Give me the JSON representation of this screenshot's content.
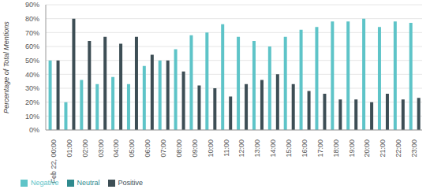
{
  "chart_data": {
    "type": "bar",
    "y_label": "Percentage of Total Mentions",
    "categories": [
      "Feb 22, 00:00",
      "01:00",
      "02:00",
      "03:00",
      "04:00",
      "05:00",
      "06:00",
      "07:00",
      "08:00",
      "09:00",
      "10:00",
      "11:00",
      "12:00",
      "13:00",
      "14:00",
      "15:00",
      "16:00",
      "17:00",
      "18:00",
      "19:00",
      "20:00",
      "21:00",
      "22:00",
      "23:00"
    ],
    "series": [
      {
        "name": "Negative",
        "color": "#5ec4c8",
        "values": [
          50,
          20,
          36,
          33,
          38,
          33,
          46,
          50,
          58,
          68,
          70,
          76,
          67,
          64,
          60,
          67,
          72,
          74,
          78,
          78,
          80,
          74,
          78,
          77
        ]
      },
      {
        "name": "Neutral",
        "color": "#2f8a8e",
        "values": [
          0,
          0,
          0,
          0,
          0,
          0,
          0,
          0,
          0,
          0,
          0,
          0,
          0,
          0,
          0,
          0,
          0,
          0,
          0,
          0,
          0,
          0,
          0,
          0
        ]
      },
      {
        "name": "Positive",
        "color": "#3d4e55",
        "values": [
          50,
          80,
          64,
          67,
          62,
          67,
          54,
          50,
          42,
          32,
          30,
          24,
          33,
          36,
          40,
          33,
          28,
          26,
          22,
          22,
          20,
          26,
          22,
          23
        ]
      }
    ],
    "ylim": [
      0,
      90
    ],
    "yticks": [
      {
        "value": 0,
        "label": "0%"
      },
      {
        "value": 10,
        "label": "10%"
      },
      {
        "value": 20,
        "label": "20%"
      },
      {
        "value": 30,
        "label": "30%"
      },
      {
        "value": 40,
        "label": "40%"
      },
      {
        "value": 50,
        "label": "50%"
      },
      {
        "value": 60,
        "label": "60%"
      },
      {
        "value": 70,
        "label": "70%"
      },
      {
        "value": 80,
        "label": "80%"
      },
      {
        "value": 90,
        "label": "90%"
      }
    ],
    "grid": true,
    "legend": "bottom"
  }
}
